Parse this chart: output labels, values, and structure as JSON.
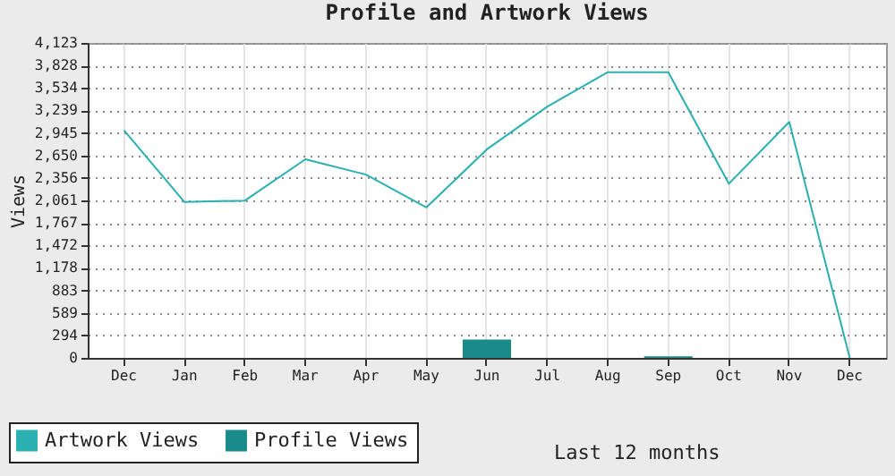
{
  "chart_data": {
    "type": "line",
    "title": "Profile and Artwork Views",
    "xlabel": "Last 12 months",
    "ylabel": "Views",
    "categories": [
      "Dec",
      "Jan",
      "Feb",
      "Mar",
      "Apr",
      "May",
      "Jun",
      "Jul",
      "Aug",
      "Sep",
      "Oct",
      "Nov",
      "Dec"
    ],
    "series": [
      {
        "name": "Artwork Views",
        "color": "#2ab0b0",
        "values": [
          2980,
          2040,
          2060,
          2600,
          2400,
          1970,
          2730,
          3290,
          3740,
          3740,
          2280,
          3090,
          0
        ]
      },
      {
        "name": "Profile Views",
        "type": "bar",
        "color": "#1a8a8a",
        "values": [
          0,
          0,
          0,
          0,
          0,
          0,
          240,
          0,
          0,
          20,
          0,
          0,
          0
        ]
      }
    ],
    "ylim": [
      0,
      4123
    ],
    "yticks": [
      0,
      294,
      589,
      883,
      {
        "value": 1178,
        "label": "1,178"
      },
      {
        "value": 1472,
        "label": "1,472"
      },
      {
        "value": 1767,
        "label": "1,767"
      },
      {
        "value": 2061,
        "label": "2,061"
      },
      {
        "value": 2356,
        "label": "2,356"
      },
      {
        "value": 2650,
        "label": "2,650"
      },
      {
        "value": 2945,
        "label": "2,945"
      },
      {
        "value": 3239,
        "label": "3,239"
      },
      {
        "value": 3534,
        "label": "3,534"
      },
      {
        "value": 3828,
        "label": "3,828"
      },
      {
        "value": 4123,
        "label": "4,123"
      }
    ],
    "grid": true,
    "legend": "bottom left"
  }
}
